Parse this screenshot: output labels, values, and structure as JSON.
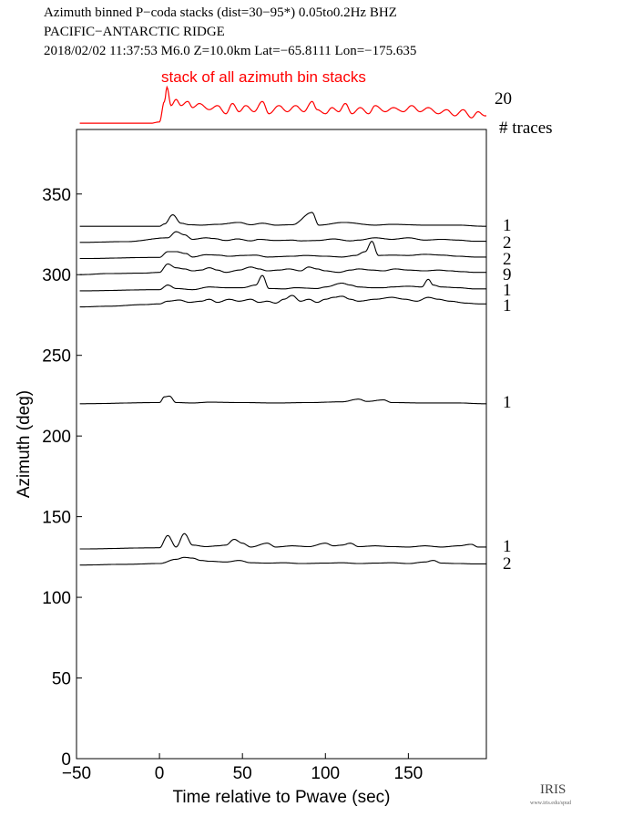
{
  "header": {
    "line1": "Azimuth binned P−coda stacks (dist=30−95*)  0.05to0.2Hz  BHZ",
    "line2": "PACIFIC−ANTARCTIC RIDGE",
    "line3": "2018/02/02  11:37:53  M6.0  Z=10.0km Lat=−65.8111 Lon=−175.635"
  },
  "colors": {
    "stack": "#ff0000",
    "trace": "#000000"
  },
  "logo": {
    "text": "IRIS",
    "sub": "www.iris.edu/spud"
  },
  "chart_data": {
    "type": "line",
    "title": "",
    "xlabel": "Time relative to Pwave (sec)",
    "ylabel": "Azimuth (deg)",
    "xlim": [
      -50,
      197
    ],
    "ylim": [
      0,
      390
    ],
    "xticks": [
      -50,
      0,
      50,
      100,
      150
    ],
    "xtick_labels": [
      "−50",
      "0",
      "50",
      "100",
      "150"
    ],
    "yticks": [
      0,
      50,
      100,
      150,
      200,
      250,
      300,
      350
    ],
    "ytick_labels": [
      "0",
      "50",
      "100",
      "150",
      "200",
      "250",
      "300",
      "350"
    ],
    "grid": false,
    "stack": {
      "label": "stack of all azimuth bin stacks",
      "count": "20",
      "peaks": [
        [
          -5,
          0.02
        ],
        [
          0,
          0.05
        ],
        [
          3,
          0.55
        ],
        [
          4.5,
          0.9
        ],
        [
          7,
          0.45
        ],
        [
          10,
          0.6
        ],
        [
          13,
          0.45
        ],
        [
          17,
          0.55
        ],
        [
          20,
          0.4
        ],
        [
          24,
          0.5
        ],
        [
          30,
          0.35
        ],
        [
          35,
          0.45
        ],
        [
          40,
          0.25
        ],
        [
          44,
          0.5
        ],
        [
          48,
          0.3
        ],
        [
          52,
          0.45
        ],
        [
          57,
          0.3
        ],
        [
          62,
          0.55
        ],
        [
          66,
          0.25
        ],
        [
          72,
          0.45
        ],
        [
          77,
          0.3
        ],
        [
          82,
          0.45
        ],
        [
          87,
          0.3
        ],
        [
          92,
          0.55
        ],
        [
          95,
          0.35
        ],
        [
          100,
          0.25
        ],
        [
          104,
          0.4
        ],
        [
          108,
          0.3
        ],
        [
          112,
          0.5
        ],
        [
          116,
          0.25
        ],
        [
          121,
          0.4
        ],
        [
          126,
          0.25
        ],
        [
          130,
          0.45
        ],
        [
          136,
          0.3
        ],
        [
          141,
          0.4
        ],
        [
          147,
          0.3
        ],
        [
          152,
          0.45
        ],
        [
          157,
          0.3
        ],
        [
          162,
          0.4
        ],
        [
          168,
          0.25
        ],
        [
          173,
          0.35
        ],
        [
          178,
          0.2
        ],
        [
          183,
          0.35
        ],
        [
          188,
          0.15
        ],
        [
          192,
          0.3
        ],
        [
          196,
          0.2
        ]
      ]
    },
    "count_header": "# traces",
    "series": [
      {
        "azimuth": 330,
        "count": "1",
        "peaks": [
          [
            -48,
            0
          ],
          [
            0,
            0
          ],
          [
            3,
            0.6
          ],
          [
            8,
            3
          ],
          [
            13,
            0.8
          ],
          [
            18,
            0.4
          ],
          [
            25,
            0.3
          ],
          [
            35,
            0.5
          ],
          [
            48,
            1.0
          ],
          [
            55,
            0.4
          ],
          [
            62,
            0.8
          ],
          [
            70,
            0.3
          ],
          [
            80,
            0.4
          ],
          [
            92,
            3.6
          ],
          [
            96,
            0.3
          ],
          [
            111,
            1.0
          ],
          [
            130,
            0.3
          ],
          [
            140,
            0.5
          ],
          [
            160,
            0.3
          ],
          [
            180,
            0.3
          ],
          [
            195,
            0
          ]
        ]
      },
      {
        "azimuth": 320,
        "count": "2",
        "peaks": [
          [
            -48,
            0
          ],
          [
            -20,
            0.2
          ],
          [
            5,
            1.2
          ],
          [
            10,
            2.8
          ],
          [
            15,
            2.0
          ],
          [
            20,
            0.8
          ],
          [
            28,
            1.2
          ],
          [
            33,
            1.0
          ],
          [
            40,
            0.5
          ],
          [
            47,
            0.9
          ],
          [
            55,
            0.4
          ],
          [
            60,
            0.8
          ],
          [
            70,
            0.5
          ],
          [
            80,
            0.6
          ],
          [
            85,
            0.4
          ],
          [
            95,
            0.5
          ],
          [
            105,
            0.9
          ],
          [
            115,
            0.4
          ],
          [
            120,
            0.6
          ],
          [
            130,
            1.2
          ],
          [
            140,
            0.8
          ],
          [
            150,
            1.2
          ],
          [
            160,
            0.6
          ],
          [
            170,
            0.8
          ],
          [
            180,
            0.6
          ],
          [
            190,
            0.3
          ]
        ]
      },
      {
        "azimuth": 310,
        "count": "2",
        "peaks": [
          [
            -48,
            0
          ],
          [
            0,
            0.3
          ],
          [
            5,
            1.8
          ],
          [
            10,
            1.8
          ],
          [
            16,
            1.3
          ],
          [
            20,
            0.4
          ],
          [
            28,
            1.0
          ],
          [
            35,
            0.9
          ],
          [
            42,
            0.6
          ],
          [
            50,
            0.8
          ],
          [
            58,
            0.9
          ],
          [
            65,
            0.4
          ],
          [
            80,
            0.6
          ],
          [
            88,
            0.8
          ],
          [
            100,
            0.6
          ],
          [
            110,
            0.4
          ],
          [
            118,
            0.8
          ],
          [
            124,
            1.8
          ],
          [
            128,
            4.5
          ],
          [
            132,
            0.8
          ],
          [
            140,
            0.9
          ],
          [
            150,
            0.8
          ],
          [
            160,
            1.1
          ],
          [
            170,
            0.9
          ],
          [
            180,
            0.6
          ],
          [
            190,
            0.4
          ]
        ]
      },
      {
        "azimuth": 300,
        "count": "9",
        "peaks": [
          [
            -48,
            0
          ],
          [
            -30,
            0.3
          ],
          [
            -10,
            0.4
          ],
          [
            0,
            0.6
          ],
          [
            5,
            2.8
          ],
          [
            10,
            1.8
          ],
          [
            15,
            1.5
          ],
          [
            20,
            1.0
          ],
          [
            25,
            1.2
          ],
          [
            30,
            1.8
          ],
          [
            35,
            1.2
          ],
          [
            40,
            0.6
          ],
          [
            48,
            1.2
          ],
          [
            55,
            2.0
          ],
          [
            60,
            1.5
          ],
          [
            65,
            1.0
          ],
          [
            72,
            1.2
          ],
          [
            78,
            1.5
          ],
          [
            85,
            1.0
          ],
          [
            90,
            2.0
          ],
          [
            95,
            1.5
          ],
          [
            100,
            1.0
          ],
          [
            108,
            0.6
          ],
          [
            115,
            1.2
          ],
          [
            120,
            1.5
          ],
          [
            128,
            1.2
          ],
          [
            135,
            1.0
          ],
          [
            142,
            1.5
          ],
          [
            150,
            1.2
          ],
          [
            160,
            1.0
          ],
          [
            168,
            1.2
          ],
          [
            175,
            1.0
          ],
          [
            182,
            0.8
          ],
          [
            190,
            0.6
          ]
        ]
      },
      {
        "azimuth": 290,
        "count": "1",
        "peaks": [
          [
            -48,
            0
          ],
          [
            0,
            0.3
          ],
          [
            5,
            1.5
          ],
          [
            10,
            0.6
          ],
          [
            20,
            0.3
          ],
          [
            30,
            1.0
          ],
          [
            40,
            0.8
          ],
          [
            50,
            0.8
          ],
          [
            58,
            1.5
          ],
          [
            62,
            4.0
          ],
          [
            66,
            0.6
          ],
          [
            75,
            0.5
          ],
          [
            82,
            0.8
          ],
          [
            95,
            0.6
          ],
          [
            100,
            1.0
          ],
          [
            110,
            2.0
          ],
          [
            115,
            1.5
          ],
          [
            120,
            1.0
          ],
          [
            128,
            0.8
          ],
          [
            135,
            0.8
          ],
          [
            140,
            1.0
          ],
          [
            150,
            1.2
          ],
          [
            158,
            1.0
          ],
          [
            162,
            3.0
          ],
          [
            165,
            1.5
          ],
          [
            170,
            1.0
          ],
          [
            180,
            0.8
          ],
          [
            190,
            0.5
          ]
        ]
      },
      {
        "azimuth": 280,
        "count": "1",
        "peaks": [
          [
            -48,
            0
          ],
          [
            -30,
            0.2
          ],
          [
            -10,
            0.6
          ],
          [
            0,
            0.8
          ],
          [
            5,
            1.5
          ],
          [
            12,
            1.8
          ],
          [
            18,
            1.2
          ],
          [
            25,
            1.5
          ],
          [
            30,
            2.0
          ],
          [
            35,
            1.2
          ],
          [
            42,
            2.0
          ],
          [
            48,
            1.5
          ],
          [
            55,
            2.0
          ],
          [
            60,
            1.2
          ],
          [
            65,
            1.5
          ],
          [
            70,
            1.0
          ],
          [
            75,
            2.0
          ],
          [
            80,
            3.0
          ],
          [
            85,
            1.5
          ],
          [
            90,
            2.0
          ],
          [
            95,
            1.2
          ],
          [
            100,
            2.0
          ],
          [
            105,
            2.5
          ],
          [
            110,
            2.8
          ],
          [
            115,
            2.0
          ],
          [
            120,
            1.5
          ],
          [
            130,
            2.0
          ],
          [
            140,
            2.5
          ],
          [
            148,
            2.0
          ],
          [
            155,
            1.5
          ],
          [
            162,
            2.5
          ],
          [
            168,
            2.0
          ],
          [
            175,
            1.5
          ],
          [
            185,
            1.0
          ],
          [
            192,
            0.8
          ]
        ]
      },
      {
        "azimuth": 220,
        "count": "1",
        "peaks": [
          [
            -48,
            0
          ],
          [
            0,
            0.3
          ],
          [
            3,
            1.8
          ],
          [
            6,
            2.0
          ],
          [
            10,
            0.3
          ],
          [
            20,
            0.2
          ],
          [
            30,
            0.4
          ],
          [
            50,
            0.3
          ],
          [
            70,
            0.2
          ],
          [
            90,
            0.3
          ],
          [
            110,
            0.5
          ],
          [
            120,
            1.2
          ],
          [
            125,
            0.6
          ],
          [
            135,
            1.0
          ],
          [
            140,
            0.3
          ],
          [
            160,
            0.2
          ],
          [
            180,
            0.2
          ],
          [
            195,
            0
          ]
        ]
      },
      {
        "azimuth": 130,
        "count": "1",
        "peaks": [
          [
            -48,
            0
          ],
          [
            0,
            0.3
          ],
          [
            5,
            3.5
          ],
          [
            10,
            0.5
          ],
          [
            15,
            4.0
          ],
          [
            20,
            1.0
          ],
          [
            28,
            0.6
          ],
          [
            35,
            0.8
          ],
          [
            40,
            1.0
          ],
          [
            45,
            2.5
          ],
          [
            50,
            1.5
          ],
          [
            55,
            0.5
          ],
          [
            65,
            1.5
          ],
          [
            70,
            0.5
          ],
          [
            80,
            0.8
          ],
          [
            90,
            0.6
          ],
          [
            100,
            1.5
          ],
          [
            105,
            0.8
          ],
          [
            110,
            1.0
          ],
          [
            115,
            1.5
          ],
          [
            120,
            0.6
          ],
          [
            130,
            0.8
          ],
          [
            140,
            0.6
          ],
          [
            150,
            0.5
          ],
          [
            160,
            0.8
          ],
          [
            170,
            0.5
          ],
          [
            180,
            0.8
          ],
          [
            188,
            1.2
          ],
          [
            192,
            0.5
          ]
        ]
      },
      {
        "azimuth": 120,
        "count": "2",
        "peaks": [
          [
            -48,
            0
          ],
          [
            -20,
            0.2
          ],
          [
            0,
            0.4
          ],
          [
            10,
            1.5
          ],
          [
            15,
            2.0
          ],
          [
            20,
            1.8
          ],
          [
            25,
            1.2
          ],
          [
            30,
            1.0
          ],
          [
            40,
            0.8
          ],
          [
            48,
            1.2
          ],
          [
            55,
            0.6
          ],
          [
            65,
            0.5
          ],
          [
            75,
            0.6
          ],
          [
            85,
            0.4
          ],
          [
            100,
            0.5
          ],
          [
            110,
            0.6
          ],
          [
            120,
            0.4
          ],
          [
            130,
            0.5
          ],
          [
            140,
            0.6
          ],
          [
            150,
            0.4
          ],
          [
            160,
            0.8
          ],
          [
            165,
            1.2
          ],
          [
            170,
            0.5
          ],
          [
            180,
            0.4
          ],
          [
            190,
            0.3
          ]
        ]
      }
    ]
  }
}
